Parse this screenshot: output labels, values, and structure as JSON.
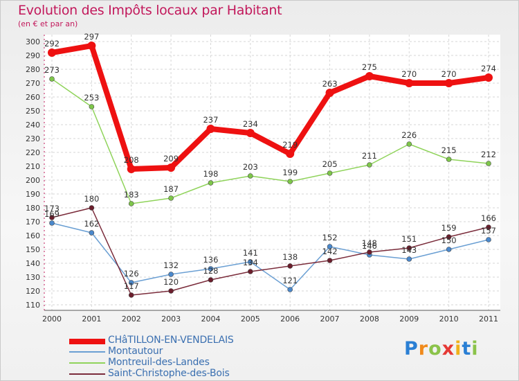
{
  "chart_data": {
    "type": "line",
    "title": "Evolution des Impôts locaux par Habitant",
    "subtitle": "(en € et par an)",
    "xlabel": "",
    "ylabel": "",
    "ylim": [
      110,
      300
    ],
    "yticks": [
      110,
      120,
      130,
      140,
      150,
      160,
      170,
      180,
      190,
      200,
      210,
      220,
      230,
      240,
      250,
      260,
      270,
      280,
      290,
      300
    ],
    "x": [
      "2000",
      "2001",
      "2002",
      "2003",
      "2004",
      "2005",
      "2006",
      "2007",
      "2008",
      "2009",
      "2010",
      "2011"
    ],
    "grid": true,
    "legend_position": "bottom-left",
    "series": [
      {
        "name": "Montreuil-des-Landes",
        "color": "#8fd35a",
        "marker": "#7ec64a",
        "values": [
          273,
          253,
          183,
          187,
          198,
          203,
          199,
          205,
          211,
          226,
          215,
          212
        ]
      },
      {
        "name": "Montautour",
        "color": "#6a9fd3",
        "marker": "#4a88cc",
        "values": [
          169,
          162,
          126,
          132,
          136,
          141,
          121,
          152,
          146,
          143,
          150,
          157
        ]
      },
      {
        "name": "Saint-Christophe-des-Bois",
        "color": "#7a2b3a",
        "marker": "#6b1e2c",
        "values": [
          173,
          180,
          117,
          120,
          128,
          134,
          138,
          142,
          148,
          151,
          159,
          166
        ]
      },
      {
        "name": "CHâTILLON-EN-VENDELAIS",
        "color": "#ee1111",
        "marker": "#ee1111",
        "values": [
          292,
          297,
          208,
          209,
          237,
          234,
          219,
          263,
          275,
          270,
          270,
          274
        ]
      }
    ]
  },
  "legend": [
    {
      "name": "CHâTILLON-EN-VENDELAIS",
      "color": "#ee1111",
      "thickness": 8
    },
    {
      "name": "Montautour",
      "color": "#6a9fd3",
      "thickness": 2
    },
    {
      "name": "Montreuil-des-Landes",
      "color": "#8fd35a",
      "thickness": 2
    },
    {
      "name": "Saint-Christophe-des-Bois",
      "color": "#7a2b3a",
      "thickness": 2
    }
  ],
  "logo": {
    "text": "Proxiti",
    "letters": [
      "P",
      "r",
      "o",
      "x",
      "i",
      "t",
      "i"
    ]
  }
}
